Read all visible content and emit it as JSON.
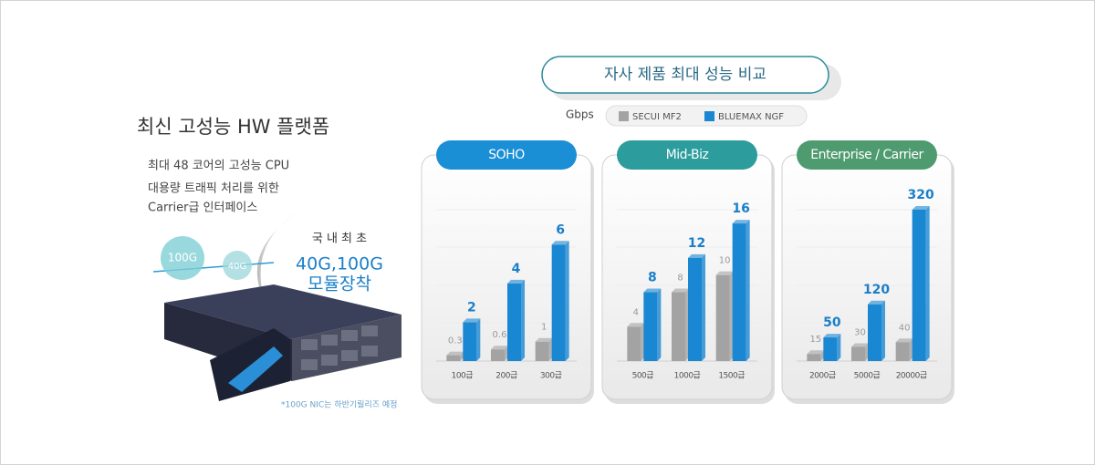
{
  "platform": {
    "title": "최신 고성능 HW 플랫폼",
    "features": [
      "최대 48 코어의 고성능 CPU",
      "대용량 트래픽 처리를 위한",
      "Carrier급 인터페이스"
    ],
    "ports": [
      "100G",
      "40G"
    ],
    "badge": [
      "국 내 최 초",
      "40G,100G",
      "모듈장착"
    ],
    "note": "*100G NIC는 하반기릴리즈 예정"
  },
  "comparison": {
    "title": "자사 제품 최대 성능 비교",
    "unit": "Gbps"
  },
  "chart_data": [
    {
      "type": "bar",
      "title": "SOHO",
      "header_color": "#1a8fd6",
      "categories": [
        "100급",
        "200급",
        "300급"
      ],
      "series": [
        {
          "name": "SECUI MF2",
          "color": "#a3a3a3",
          "values": [
            0.3,
            0.6,
            1
          ]
        },
        {
          "name": "BLUEMAX NGF",
          "color": "#1a87d2",
          "values": [
            2,
            4,
            6
          ]
        }
      ],
      "ylim": [
        0,
        7.8
      ]
    },
    {
      "type": "bar",
      "title": "Mid-Biz",
      "header_color": "#2c9c9c",
      "categories": [
        "500급",
        "1000급",
        "1500급"
      ],
      "series": [
        {
          "color": "#a3a3a3",
          "values": [
            4,
            8,
            10
          ]
        },
        {
          "color": "#1a87d2",
          "values": [
            8,
            12,
            16
          ]
        }
      ],
      "ylim": [
        0,
        17.6
      ]
    },
    {
      "type": "bar",
      "title": "Enterprise / Carrier",
      "header_color": "#4f9b70",
      "categories": [
        "2000급",
        "5000급",
        "20000급"
      ],
      "series": [
        {
          "color": "#a3a3a3",
          "values": [
            15,
            30,
            40
          ]
        },
        {
          "color": "#1a87d2",
          "values": [
            50,
            120,
            320
          ]
        }
      ],
      "ylim": [
        0,
        320
      ]
    }
  ]
}
